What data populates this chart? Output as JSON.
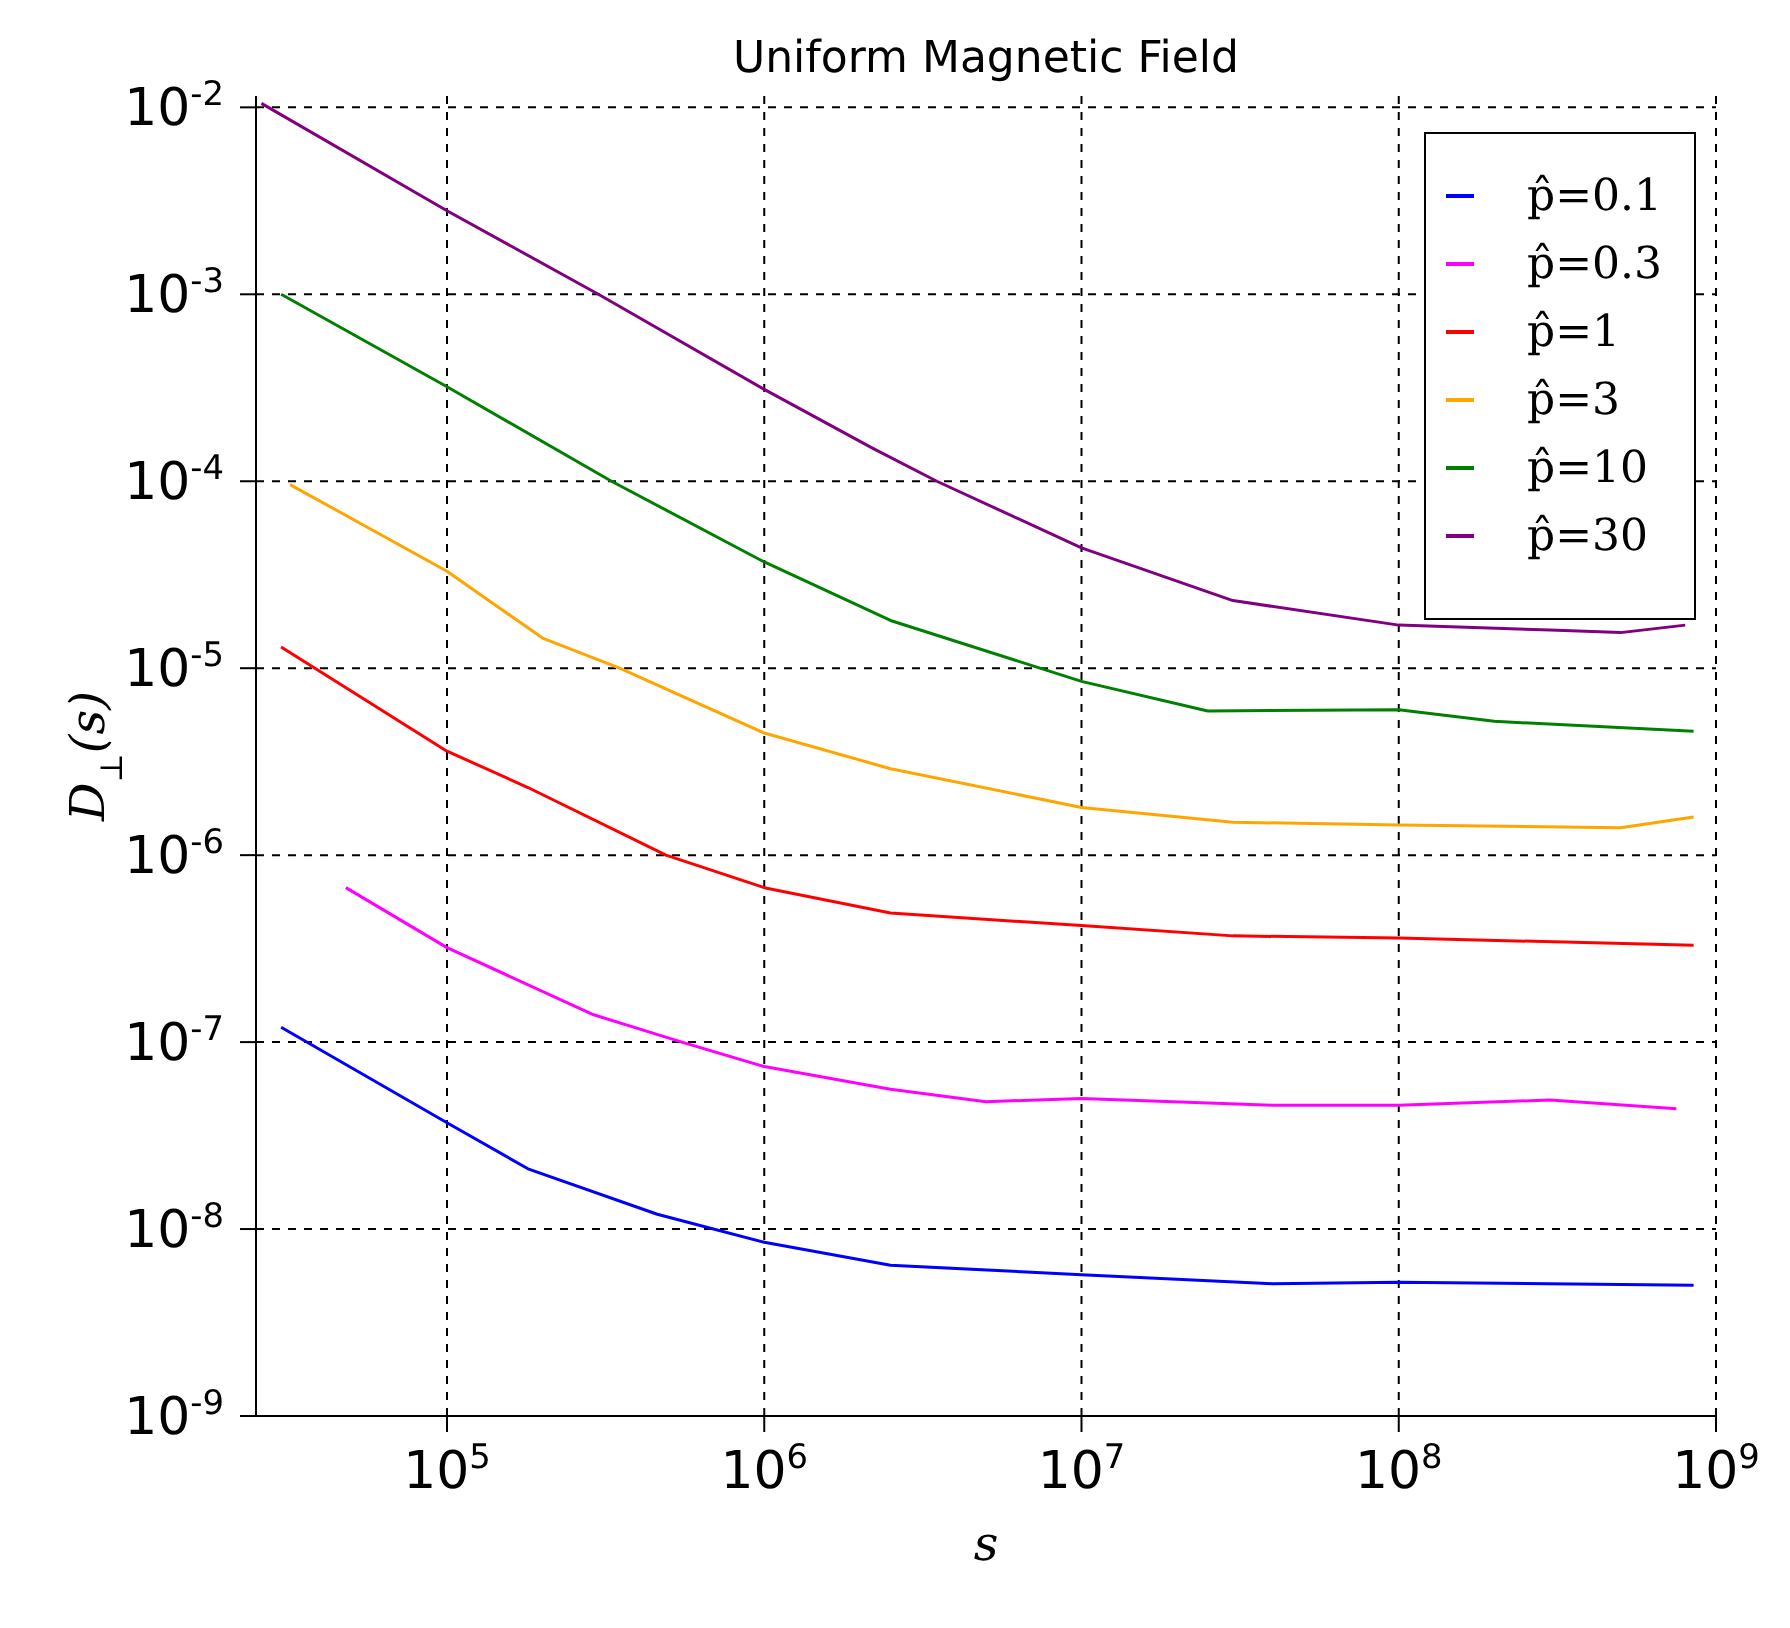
{
  "chart_data": {
    "type": "line",
    "title": "Uniform Magnetic Field",
    "xlabel": "s",
    "ylabel": "D$_{⊥}$(s)",
    "log": "xy",
    "grid": true,
    "legend": "top right",
    "marker": "none",
    "line_style": "solid",
    "xlim": [
      25000,
      1000000000
    ],
    "xticks": [
      {
        "value": 100000,
        "label": "10$^{5}$"
      },
      {
        "value": 1000000,
        "label": "10$^{6}$"
      },
      {
        "value": 10000000,
        "label": "10$^{7}$"
      },
      {
        "value": 100000000,
        "label": "10$^{8}$"
      },
      {
        "value": 1000000000,
        "label": "10$^{9}$"
      }
    ],
    "ylim": [
      1e-09,
      0.0115
    ],
    "yticks": [
      {
        "value": 1e-09,
        "label": "10$^{-9}$"
      },
      {
        "value": 1e-08,
        "label": "10$^{-8}$"
      },
      {
        "value": 1e-07,
        "label": "10$^{-7}$"
      },
      {
        "value": 1e-06,
        "label": "10$^{-6}$"
      },
      {
        "value": 1e-05,
        "label": "10$^{-5}$"
      },
      {
        "value": 0.0001,
        "label": "10$^{-4}$"
      },
      {
        "value": 0.001,
        "label": "10$^{-3}$"
      },
      {
        "value": 0.01,
        "label": "10$^{-2}$"
      }
    ],
    "series": [
      {
        "name": "p̂=0.1",
        "color": "#0000ff",
        "x": [
          30000,
          100000,
          180000,
          460000,
          1000000,
          2500000,
          10000000,
          40000000,
          100000000,
          850000000
        ],
        "values": [
          1.2e-07,
          3.7e-08,
          2.1e-08,
          1.2e-08,
          8.5e-09,
          6.4e-09,
          5.7e-09,
          5.1e-09,
          5.2e-09,
          5e-09
        ]
      },
      {
        "name": "p̂=0.3",
        "color": "#ff00ff",
        "x": [
          48000,
          100000,
          290000,
          550000,
          1000000,
          2500000,
          5000000,
          10000000,
          40000000,
          100000000,
          300000000,
          750000000
        ],
        "values": [
          6.7e-07,
          3.2e-07,
          1.4e-07,
          1e-07,
          7.4e-08,
          5.6e-08,
          4.8e-08,
          5e-08,
          4.6e-08,
          4.6e-08,
          4.9e-08,
          4.4e-08
        ]
      },
      {
        "name": "p̂=1",
        "color": "#ff0000",
        "x": [
          30000,
          100000,
          180000,
          490000,
          1000000,
          2500000,
          10000000,
          30000000,
          100000000,
          850000000
        ],
        "values": [
          1.3e-05,
          3.6e-06,
          2.3e-06,
          1e-06,
          6.7e-07,
          4.9e-07,
          4.2e-07,
          3.7e-07,
          3.6e-07,
          3.3e-07
        ]
      },
      {
        "name": "p̂=3",
        "color": "#ffa500",
        "x": [
          32000,
          100000,
          200000,
          350000,
          1000000,
          2500000,
          10000000,
          30000000,
          100000000,
          500000000,
          850000000
        ],
        "values": [
          9.6e-05,
          3.3e-05,
          1.45e-05,
          1e-05,
          4.5e-06,
          2.9e-06,
          1.8e-06,
          1.5e-06,
          1.45e-06,
          1.4e-06,
          1.6e-06
        ]
      },
      {
        "name": "p̂=10",
        "color": "#008000",
        "x": [
          30000,
          100000,
          330000,
          1000000,
          2500000,
          10000000,
          25000000,
          100000000,
          200000000,
          850000000
        ],
        "values": [
          0.001,
          0.00032,
          0.0001,
          3.7e-05,
          1.8e-05,
          8.5e-06,
          5.9e-06,
          6e-06,
          5.2e-06,
          4.6e-06
        ]
      },
      {
        "name": "p̂=30",
        "color": "#800080",
        "x": [
          26000,
          100000,
          300000,
          1000000,
          2200000,
          3500000,
          10000000,
          30000000,
          100000000,
          300000000,
          500000000,
          800000000
        ],
        "values": [
          0.0105,
          0.0028,
          0.001,
          0.00031,
          0.00015,
          0.0001,
          4.4e-05,
          2.3e-05,
          1.7e-05,
          1.6e-05,
          1.55e-05,
          1.7e-05
        ]
      }
    ]
  }
}
